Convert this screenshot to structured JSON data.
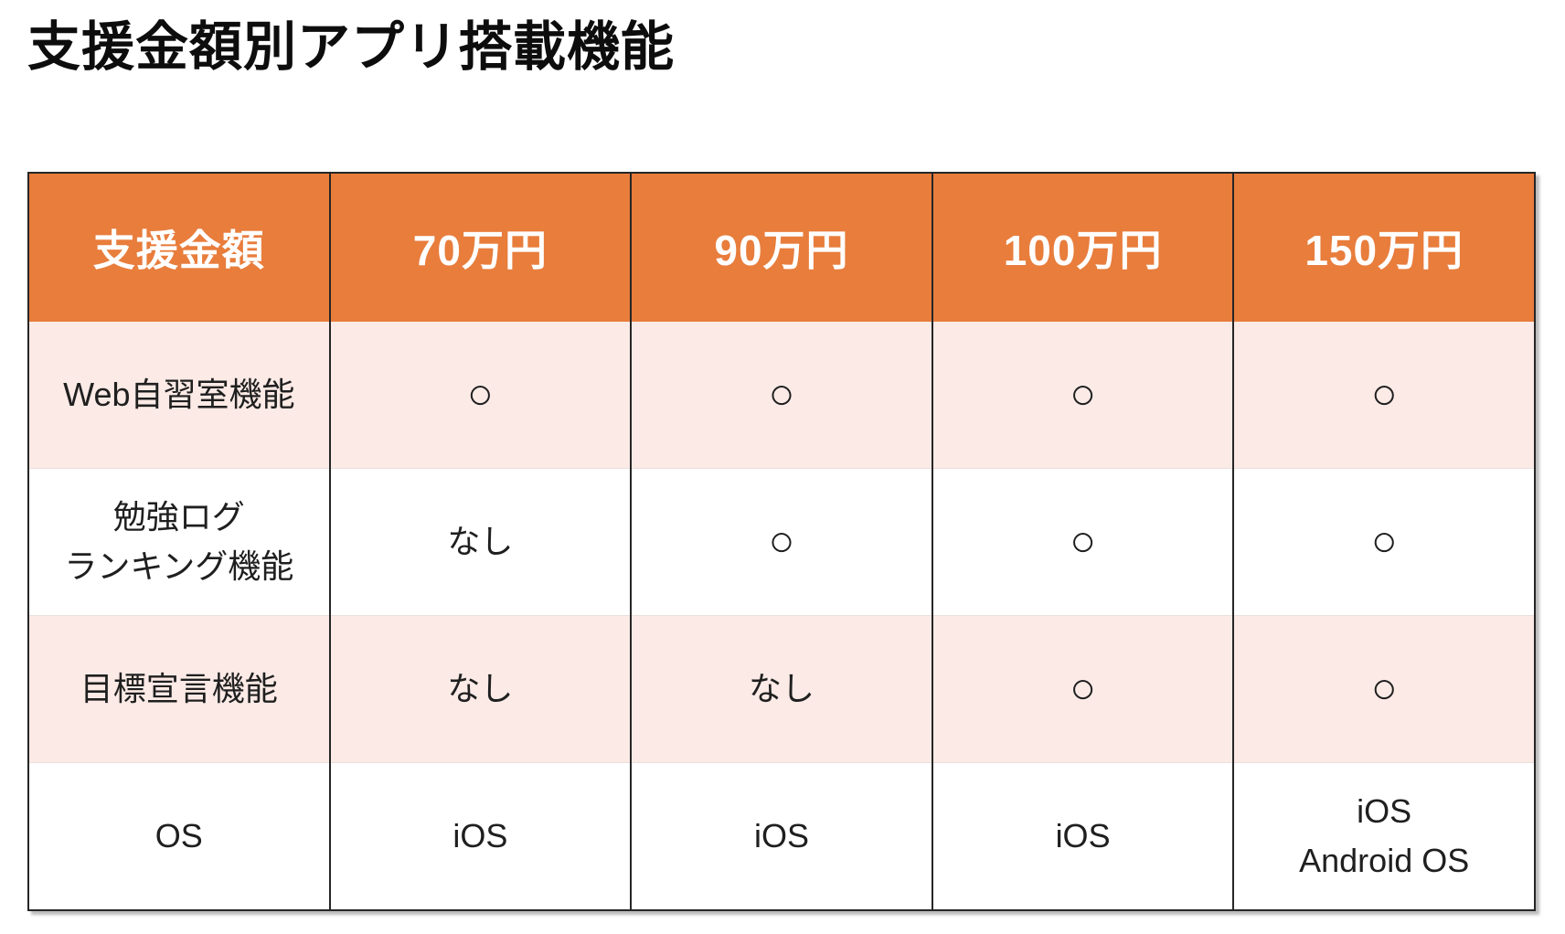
{
  "page": {
    "title": "支援金額別アプリ搭載機能"
  },
  "colors": {
    "header_bg": "#E87D3C",
    "header_text": "#FFFFFF",
    "pink_row_bg": "#FBEAE6",
    "white_row_bg": "#FFFFFF",
    "body_text": "#1F1F1F",
    "grid_line": "#262626"
  },
  "table": {
    "header_cells": [
      "支援金額",
      "70万円",
      "90万円",
      "100万円",
      "150万円"
    ],
    "circle_mark": "○",
    "rows": [
      {
        "label": "Web自習室機能",
        "values": [
          "○",
          "○",
          "○",
          "○"
        ]
      },
      {
        "label": "勉強ログ\nランキング機能",
        "values": [
          "なし",
          "○",
          "○",
          "○"
        ]
      },
      {
        "label": "目標宣言機能",
        "values": [
          "なし",
          "なし",
          "○",
          "○"
        ]
      },
      {
        "label": "OS",
        "values": [
          "iOS",
          "iOS",
          "iOS",
          "iOS\nAndroid OS"
        ]
      }
    ]
  }
}
